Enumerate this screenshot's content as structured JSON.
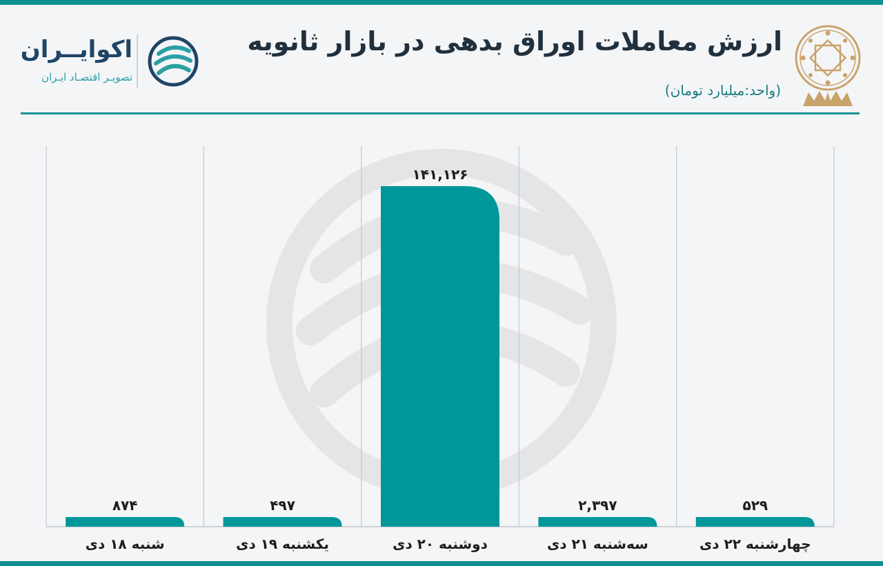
{
  "header": {
    "title": "ارزش معاملات اوراق بدهی در بازار ثانویه",
    "subtitle": "(واحد:میلیارد تومان)"
  },
  "brand": {
    "name": "اکوایــران",
    "tagline": "تصویـر اقتصـاد ایـران"
  },
  "colors": {
    "bar": "#00979a",
    "accent": "#0e8f91",
    "emblem": "#c9a36a"
  },
  "chart_data": {
    "type": "bar",
    "title": "ارزش معاملات اوراق بدهی در بازار ثانویه",
    "subtitle": "(واحد:میلیارد تومان)",
    "categories": [
      "شنبه ۱۸ دی",
      "یکشنبه ۱۹ دی",
      "دوشنبه ۲۰ دی",
      "سه‌شنبه ۲۱ دی",
      "چهارشنبه ۲۲ دی"
    ],
    "values": [
      874,
      497,
      141126,
      2397,
      529
    ],
    "value_labels": [
      "۸۷۴",
      "۴۹۷",
      "۱۴۱,۱۲۶",
      "۲,۳۹۷",
      "۵۲۹"
    ],
    "grid": "vertical-separators",
    "ylim": [
      0,
      141126
    ]
  }
}
